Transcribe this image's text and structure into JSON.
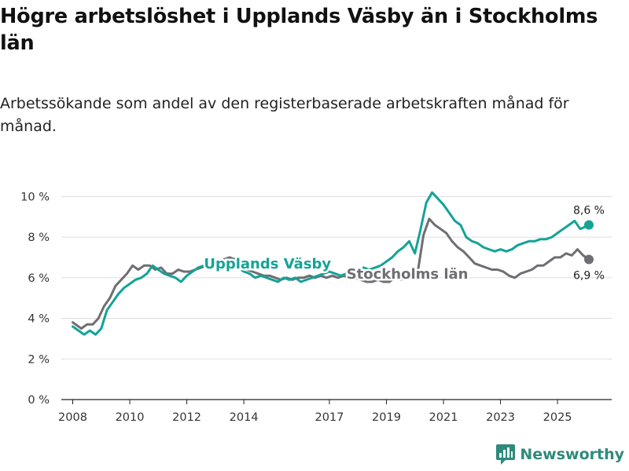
{
  "title": "Högre arbetslöshet i Upplands Väsby än i Stockholms län",
  "subtitle": "Arbetssökande som andel av den registerbaserade arbetskraften månad för månad.",
  "brand": {
    "name": "Newsworthy",
    "icon": "newsworthy-logo-icon"
  },
  "chart_data": {
    "type": "line",
    "title": "Högre arbetslöshet i Upplands Väsby än i Stockholms län",
    "xlabel": "",
    "ylabel": "",
    "xlim": [
      2007.6,
      2026.9
    ],
    "ylim": [
      0,
      10.4
    ],
    "grid": true,
    "y_ticks": [
      {
        "value": 0,
        "label": "0 %"
      },
      {
        "value": 2,
        "label": "2 %"
      },
      {
        "value": 4,
        "label": "4 %"
      },
      {
        "value": 6,
        "label": "6 %"
      },
      {
        "value": 8,
        "label": "8 %"
      },
      {
        "value": 10,
        "label": "10 %"
      }
    ],
    "x_ticks": [
      {
        "value": 2008,
        "label": "2008"
      },
      {
        "value": 2010,
        "label": "2010"
      },
      {
        "value": 2012,
        "label": "2012"
      },
      {
        "value": 2014,
        "label": "2014"
      },
      {
        "value": 2017,
        "label": "2017"
      },
      {
        "value": 2019,
        "label": "2019"
      },
      {
        "value": 2021,
        "label": "2021"
      },
      {
        "value": 2023,
        "label": "2023"
      },
      {
        "value": 2025,
        "label": "2025"
      }
    ],
    "series": [
      {
        "name": "Stockholms län",
        "label": "Stockholms län",
        "color": "#6e6e73",
        "end_label": "6,9 %",
        "x": [
          2008.0,
          2008.3,
          2008.5,
          2008.7,
          2008.9,
          2009.1,
          2009.3,
          2009.5,
          2009.7,
          2009.9,
          2010.1,
          2010.3,
          2010.5,
          2010.7,
          2010.9,
          2011.1,
          2011.3,
          2011.5,
          2011.7,
          2011.9,
          2012.1,
          2012.3,
          2012.5,
          2012.7,
          2012.9,
          2013.1,
          2013.3,
          2013.5,
          2013.7,
          2013.9,
          2014.1,
          2014.3,
          2014.5,
          2014.7,
          2014.9,
          2015.1,
          2015.3,
          2015.5,
          2015.7,
          2015.9,
          2016.1,
          2016.3,
          2016.5,
          2016.7,
          2016.9,
          2017.1,
          2017.3,
          2017.5,
          2017.7,
          2017.9,
          2018.1,
          2018.3,
          2018.5,
          2018.7,
          2018.9,
          2019.1,
          2019.3,
          2019.5,
          2019.7,
          2019.9,
          2020.1,
          2020.3,
          2020.5,
          2020.7,
          2020.9,
          2021.1,
          2021.3,
          2021.5,
          2021.7,
          2021.9,
          2022.1,
          2022.3,
          2022.5,
          2022.7,
          2022.9,
          2023.1,
          2023.3,
          2023.5,
          2023.7,
          2023.9,
          2024.1,
          2024.3,
          2024.5,
          2024.7,
          2024.9,
          2025.1,
          2025.3,
          2025.5,
          2025.7,
          2025.9,
          2026.1
        ],
        "values": [
          3.8,
          3.5,
          3.7,
          3.7,
          4.0,
          4.6,
          5.0,
          5.6,
          5.9,
          6.2,
          6.6,
          6.4,
          6.6,
          6.6,
          6.4,
          6.5,
          6.2,
          6.2,
          6.4,
          6.3,
          6.3,
          6.4,
          6.5,
          6.6,
          6.6,
          6.8,
          6.9,
          7.0,
          6.9,
          6.7,
          6.4,
          6.3,
          6.2,
          6.1,
          6.1,
          6.0,
          5.9,
          6.0,
          5.9,
          6.0,
          6.0,
          6.1,
          6.0,
          6.1,
          6.0,
          6.1,
          6.0,
          6.1,
          6.0,
          6.0,
          5.9,
          5.8,
          5.8,
          5.9,
          5.8,
          5.8,
          6.0,
          5.9,
          6.0,
          6.0,
          6.3,
          8.1,
          8.9,
          8.6,
          8.4,
          8.2,
          7.8,
          7.5,
          7.3,
          7.0,
          6.7,
          6.6,
          6.5,
          6.4,
          6.4,
          6.3,
          6.1,
          6.0,
          6.2,
          6.3,
          6.4,
          6.6,
          6.6,
          6.8,
          7.0,
          7.0,
          7.2,
          7.1,
          7.4,
          7.1,
          6.9
        ]
      },
      {
        "name": "Upplands Väsby",
        "label": "Upplands Väsby",
        "color": "#14a396",
        "end_label": "8,6 %",
        "x": [
          2008.0,
          2008.2,
          2008.4,
          2008.6,
          2008.8,
          2009.0,
          2009.2,
          2009.4,
          2009.6,
          2009.8,
          2010.0,
          2010.2,
          2010.4,
          2010.6,
          2010.8,
          2011.0,
          2011.2,
          2011.4,
          2011.6,
          2011.8,
          2012.0,
          2012.2,
          2012.4,
          2012.6,
          2012.8,
          2013.0,
          2013.2,
          2013.4,
          2013.6,
          2013.8,
          2014.0,
          2014.2,
          2014.4,
          2014.6,
          2014.8,
          2015.0,
          2015.2,
          2015.4,
          2015.6,
          2015.8,
          2016.0,
          2016.2,
          2016.4,
          2016.6,
          2016.8,
          2017.0,
          2017.2,
          2017.4,
          2017.6,
          2017.8,
          2018.0,
          2018.2,
          2018.4,
          2018.6,
          2018.8,
          2019.0,
          2019.2,
          2019.4,
          2019.6,
          2019.8,
          2020.0,
          2020.2,
          2020.4,
          2020.6,
          2020.8,
          2021.0,
          2021.2,
          2021.4,
          2021.6,
          2021.8,
          2022.0,
          2022.2,
          2022.4,
          2022.6,
          2022.8,
          2023.0,
          2023.2,
          2023.4,
          2023.6,
          2023.8,
          2024.0,
          2024.2,
          2024.4,
          2024.6,
          2024.8,
          2025.0,
          2025.2,
          2025.4,
          2025.6,
          2025.8,
          2026.1
        ],
        "values": [
          3.6,
          3.4,
          3.2,
          3.4,
          3.2,
          3.5,
          4.4,
          4.8,
          5.2,
          5.5,
          5.7,
          5.9,
          6.0,
          6.2,
          6.6,
          6.4,
          6.2,
          6.1,
          6.0,
          5.8,
          6.1,
          6.3,
          6.5,
          6.6,
          6.7,
          6.8,
          6.8,
          6.7,
          6.5,
          6.5,
          6.3,
          6.2,
          6.0,
          6.1,
          6.0,
          5.9,
          5.8,
          6.0,
          5.9,
          6.0,
          5.8,
          5.9,
          6.0,
          6.1,
          6.2,
          6.3,
          6.2,
          6.1,
          6.2,
          6.3,
          6.4,
          6.5,
          6.4,
          6.5,
          6.6,
          6.8,
          7.0,
          7.3,
          7.5,
          7.8,
          7.2,
          8.4,
          9.7,
          10.2,
          9.9,
          9.6,
          9.2,
          8.8,
          8.6,
          8.0,
          7.8,
          7.7,
          7.5,
          7.4,
          7.3,
          7.4,
          7.3,
          7.4,
          7.6,
          7.7,
          7.8,
          7.8,
          7.9,
          7.9,
          8.0,
          8.2,
          8.4,
          8.6,
          8.8,
          8.4,
          8.6
        ]
      }
    ],
    "annotations": [
      {
        "text": "Upplands Väsby",
        "series": "Upplands Väsby"
      },
      {
        "text": "Stockholms län",
        "series": "Stockholms län"
      }
    ]
  }
}
